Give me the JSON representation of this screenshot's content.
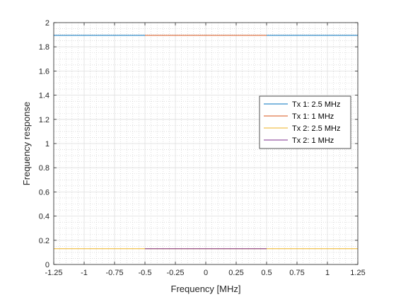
{
  "chart_data": {
    "type": "line",
    "title": "",
    "xlabel": "Frequency [MHz]",
    "ylabel": "Frequency response",
    "xlim": [
      -1.25,
      1.25
    ],
    "ylim": [
      0,
      2
    ],
    "x_ticks": [
      -1.25,
      -1,
      -0.75,
      -0.5,
      -0.25,
      0,
      0.25,
      0.5,
      0.75,
      1,
      1.25
    ],
    "x_tick_labels": [
      "-1.25",
      "-1",
      "-0.75",
      "-0.5",
      "-0.25",
      "0",
      "0.25",
      "0.5",
      "0.75",
      "1",
      "1.25"
    ],
    "y_ticks": [
      0,
      0.2,
      0.4,
      0.6,
      0.8,
      1,
      1.2,
      1.4,
      1.6,
      1.8,
      2
    ],
    "y_tick_labels": [
      "0",
      "0.2",
      "0.4",
      "0.6",
      "0.8",
      "1",
      "1.2",
      "1.4",
      "1.6",
      "1.8",
      "2"
    ],
    "grid": true,
    "minor_grid": true,
    "legend_position": "right",
    "series": [
      {
        "name": "Tx 1: 2.5 MHz",
        "color": "#0072BD",
        "x": [
          -1.25,
          1.25
        ],
        "y": [
          1.895,
          1.895
        ]
      },
      {
        "name": "Tx 1: 1 MHz",
        "color": "#D95319",
        "x": [
          -0.5,
          0.5
        ],
        "y": [
          1.895,
          1.895
        ]
      },
      {
        "name": "Tx 2: 2.5 MHz",
        "color": "#EDB120",
        "x": [
          -1.25,
          1.25
        ],
        "y": [
          0.13,
          0.13
        ]
      },
      {
        "name": "Tx 2: 1 MHz",
        "color": "#7E2F8E",
        "x": [
          -0.5,
          0.5
        ],
        "y": [
          0.13,
          0.13
        ]
      }
    ]
  }
}
